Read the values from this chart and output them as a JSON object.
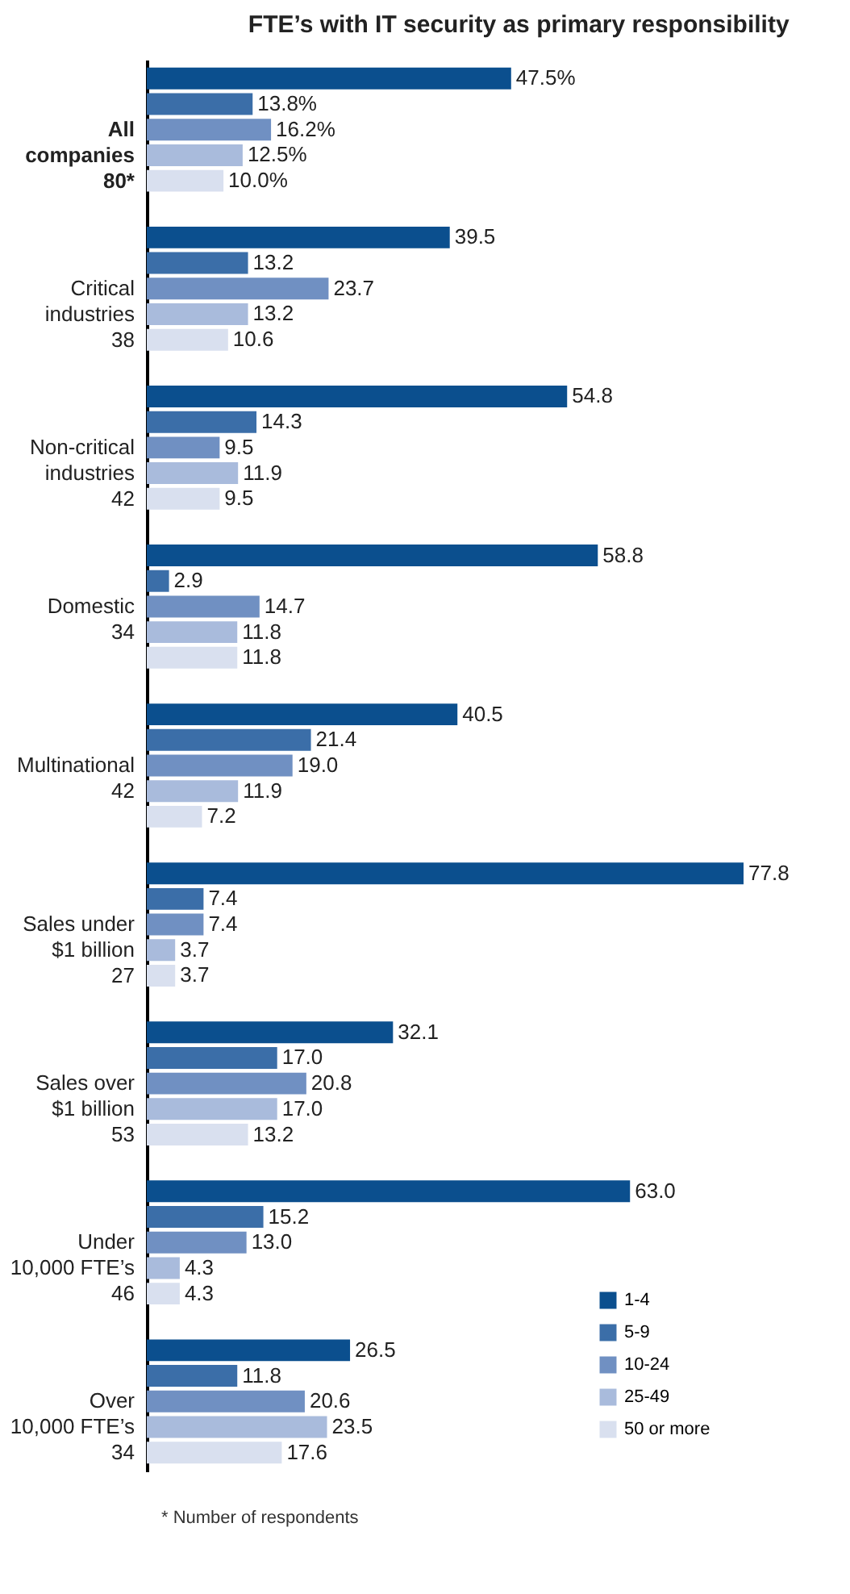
{
  "chart_data": {
    "type": "bar",
    "orientation": "horizontal",
    "title": "FTE’s with IT security as primary responsibility",
    "categories": [
      "All\ncompanies\n80*",
      "Critical\nindustries\n38",
      "Non-critical\nindustries\n42",
      "Domestic\n34",
      "Multinational\n42",
      "Sales under\n$1 billion\n27",
      "Sales over\n$1 billion\n53",
      "Under\n10,000 FTE’s\n46",
      "Over\n10,000 FTE’s\n34"
    ],
    "series": [
      {
        "name": "1-4",
        "color": "#0b4f8e",
        "values": [
          47.5,
          39.5,
          54.8,
          58.8,
          40.5,
          77.8,
          32.1,
          63.0,
          26.5
        ],
        "value_labels": [
          "47.5%",
          "39.5",
          "54.8",
          "58.8",
          "40.5",
          "77.8",
          "32.1",
          "63.0",
          "26.5"
        ]
      },
      {
        "name": "5-9",
        "color": "#3b6ea8",
        "values": [
          13.8,
          13.2,
          14.3,
          2.9,
          21.4,
          7.4,
          17.0,
          15.2,
          11.8
        ],
        "value_labels": [
          "13.8%",
          "13.2",
          "14.3",
          "2.9",
          "21.4",
          "7.4",
          "17.0",
          "15.2",
          "11.8"
        ]
      },
      {
        "name": "10-24",
        "color": "#7090c2",
        "values": [
          16.2,
          23.7,
          9.5,
          14.7,
          19.0,
          7.4,
          20.8,
          13.0,
          20.6
        ],
        "value_labels": [
          "16.2%",
          "23.7",
          "9.5",
          "14.7",
          "19.0",
          "7.4",
          "20.8",
          "13.0",
          "20.6"
        ]
      },
      {
        "name": "25-49",
        "color": "#a9bbdc",
        "values": [
          12.5,
          13.2,
          11.9,
          11.8,
          11.9,
          3.7,
          17.0,
          4.3,
          23.5
        ],
        "value_labels": [
          "12.5%",
          "13.2",
          "11.9",
          "11.8",
          "11.9",
          "3.7",
          "17.0",
          "4.3",
          "23.5"
        ]
      },
      {
        "name": "50 or more",
        "color": "#d9e0ef",
        "values": [
          10.0,
          10.6,
          9.5,
          11.8,
          7.2,
          3.7,
          13.2,
          4.3,
          17.6
        ],
        "value_labels": [
          "10.0%",
          "10.6",
          "9.5",
          "11.8",
          "7.2",
          "3.7",
          "13.2",
          "4.3",
          "17.6"
        ]
      }
    ],
    "legend": "bottom right",
    "grid": false,
    "annotations": [
      "* Number of respondents"
    ]
  }
}
